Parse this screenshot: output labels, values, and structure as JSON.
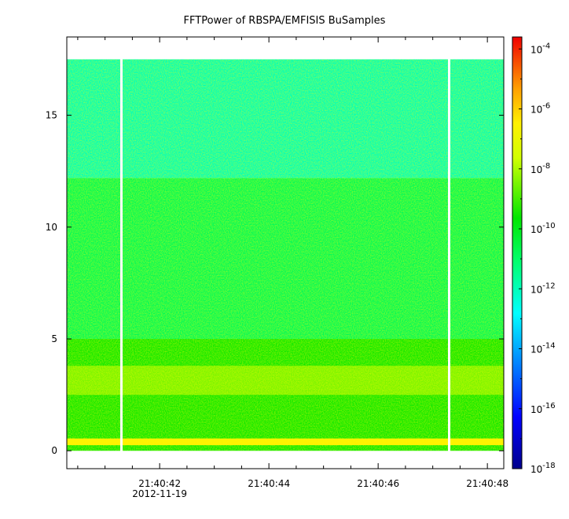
{
  "chart_data": {
    "type": "heatmap",
    "title": "FFTPower of RBSPA/EMFISIS  BuSamples",
    "xlabel": "",
    "ylabel": "",
    "x_range": [
      "21:40:40.3",
      "21:40:48.3"
    ],
    "x_ticks": [
      "21:40:42",
      "21:40:44",
      "21:40:46",
      "21:40:48"
    ],
    "x_date_label": "2012-11-19",
    "ylim": [
      -0.8,
      18.5
    ],
    "y_ticks": [
      0,
      5,
      10,
      15
    ],
    "colorbar": {
      "scale": "log",
      "range_exponents": [
        -18,
        -3.6
      ],
      "tick_base": "10",
      "tick_exponents": [
        "-4",
        "-6",
        "-8",
        "-10",
        "-12",
        "-14",
        "-16",
        "-18"
      ]
    },
    "data_coverage_y": [
      0,
      17.5
    ],
    "gaps_x": [
      "21:40:41.3",
      "21:40:47.3"
    ],
    "bands": [
      {
        "y_range": [
          0.25,
          0.55
        ],
        "log10_power": -6.5,
        "description_color": "red-orange"
      },
      {
        "y_range": [
          2.5,
          3.8
        ],
        "log10_power": -8.5,
        "description_color": "yellow-orange"
      },
      {
        "y_range": [
          0,
          5
        ],
        "log10_power": -9.5,
        "description_color": "yellow-green"
      },
      {
        "y_range": [
          5,
          12.2
        ],
        "log10_power": -10.8,
        "description_color": "green"
      },
      {
        "y_range": [
          12.2,
          17.5
        ],
        "log10_power": -12.0,
        "description_color": "spring green"
      }
    ]
  }
}
